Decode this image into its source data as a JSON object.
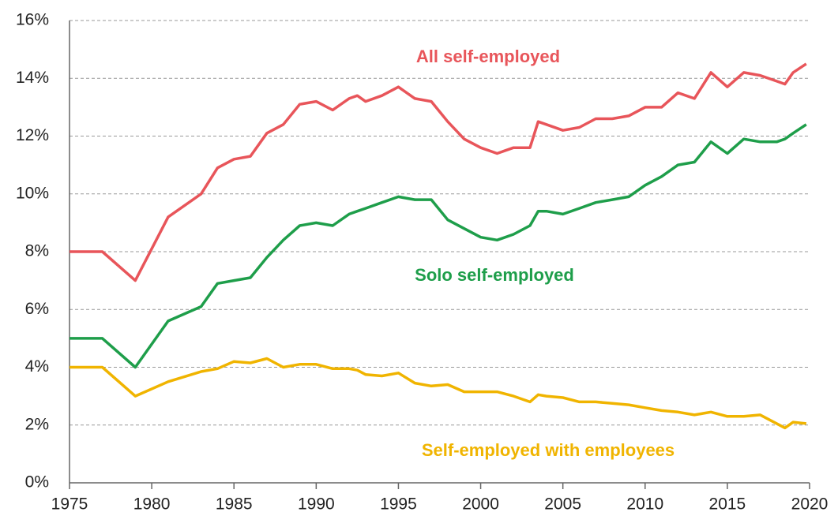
{
  "chart_data": {
    "type": "line",
    "x": [
      1975,
      1977,
      1979,
      1981,
      1983,
      1984,
      1985,
      1986,
      1987,
      1988,
      1989,
      1990,
      1991,
      1992,
      1992.5,
      1993,
      1994,
      1995,
      1996,
      1997,
      1998,
      1999,
      2000,
      2001,
      2002,
      2003,
      2003.5,
      2004,
      2005,
      2006,
      2007,
      2008,
      2009,
      2010,
      2011,
      2012,
      2013,
      2014,
      2015,
      2016,
      2017,
      2018,
      2018.5,
      2019,
      2019.8
    ],
    "series": [
      {
        "name": "All self-employed",
        "color": "#e8555a",
        "values": [
          8,
          8,
          7,
          9.2,
          10,
          10.9,
          11.2,
          11.3,
          12.1,
          12.4,
          13.1,
          13.2,
          12.9,
          13.3,
          13.4,
          13.2,
          13.4,
          13.7,
          13.3,
          13.2,
          12.5,
          11.9,
          11.6,
          11.4,
          11.6,
          11.6,
          12.5,
          12.4,
          12.2,
          12.3,
          12.6,
          12.6,
          12.7,
          13.0,
          13.0,
          13.5,
          13.3,
          14.2,
          13.7,
          14.2,
          14.1,
          13.9,
          13.8,
          14.2,
          14.5
        ]
      },
      {
        "name": "Solo self-employed",
        "color": "#1e9e4a",
        "values": [
          5,
          5,
          4,
          5.6,
          6.1,
          6.9,
          7.0,
          7.1,
          7.8,
          8.4,
          8.9,
          9.0,
          8.9,
          9.3,
          9.4,
          9.5,
          9.7,
          9.9,
          9.8,
          9.8,
          9.1,
          8.8,
          8.5,
          8.4,
          8.6,
          8.9,
          9.4,
          9.4,
          9.3,
          9.5,
          9.7,
          9.8,
          9.9,
          10.3,
          10.6,
          11.0,
          11.1,
          11.8,
          11.4,
          11.9,
          11.8,
          11.8,
          11.9,
          12.1,
          12.4
        ]
      },
      {
        "name": "Self-employed with employees",
        "color": "#f0b400",
        "values": [
          4,
          4,
          3,
          3.5,
          3.85,
          3.95,
          4.2,
          4.15,
          4.3,
          4.0,
          4.1,
          4.1,
          3.95,
          3.95,
          3.9,
          3.75,
          3.7,
          3.8,
          3.45,
          3.35,
          3.4,
          3.15,
          3.15,
          3.15,
          3.0,
          2.8,
          3.05,
          3.0,
          2.95,
          2.8,
          2.8,
          2.75,
          2.7,
          2.6,
          2.5,
          2.45,
          2.35,
          2.45,
          2.3,
          2.3,
          2.35,
          2.05,
          1.9,
          2.1,
          2.05
        ]
      }
    ],
    "xlim": [
      1975,
      2020
    ],
    "xticks": [
      1975,
      1980,
      1985,
      1990,
      1995,
      2000,
      2005,
      2010,
      2015,
      2020
    ],
    "ylim": [
      0,
      16
    ],
    "yticks": [
      {
        "value": 0,
        "label": "0%"
      },
      {
        "value": 2,
        "label": "2%"
      },
      {
        "value": 4,
        "label": "4%"
      },
      {
        "value": 6,
        "label": "6%"
      },
      {
        "value": 8,
        "label": "8%"
      },
      {
        "value": 10,
        "label": "10%"
      },
      {
        "value": 12,
        "label": "12%"
      },
      {
        "value": 14,
        "label": "14%"
      },
      {
        "value": 16,
        "label": "16%"
      }
    ],
    "grid": true
  }
}
